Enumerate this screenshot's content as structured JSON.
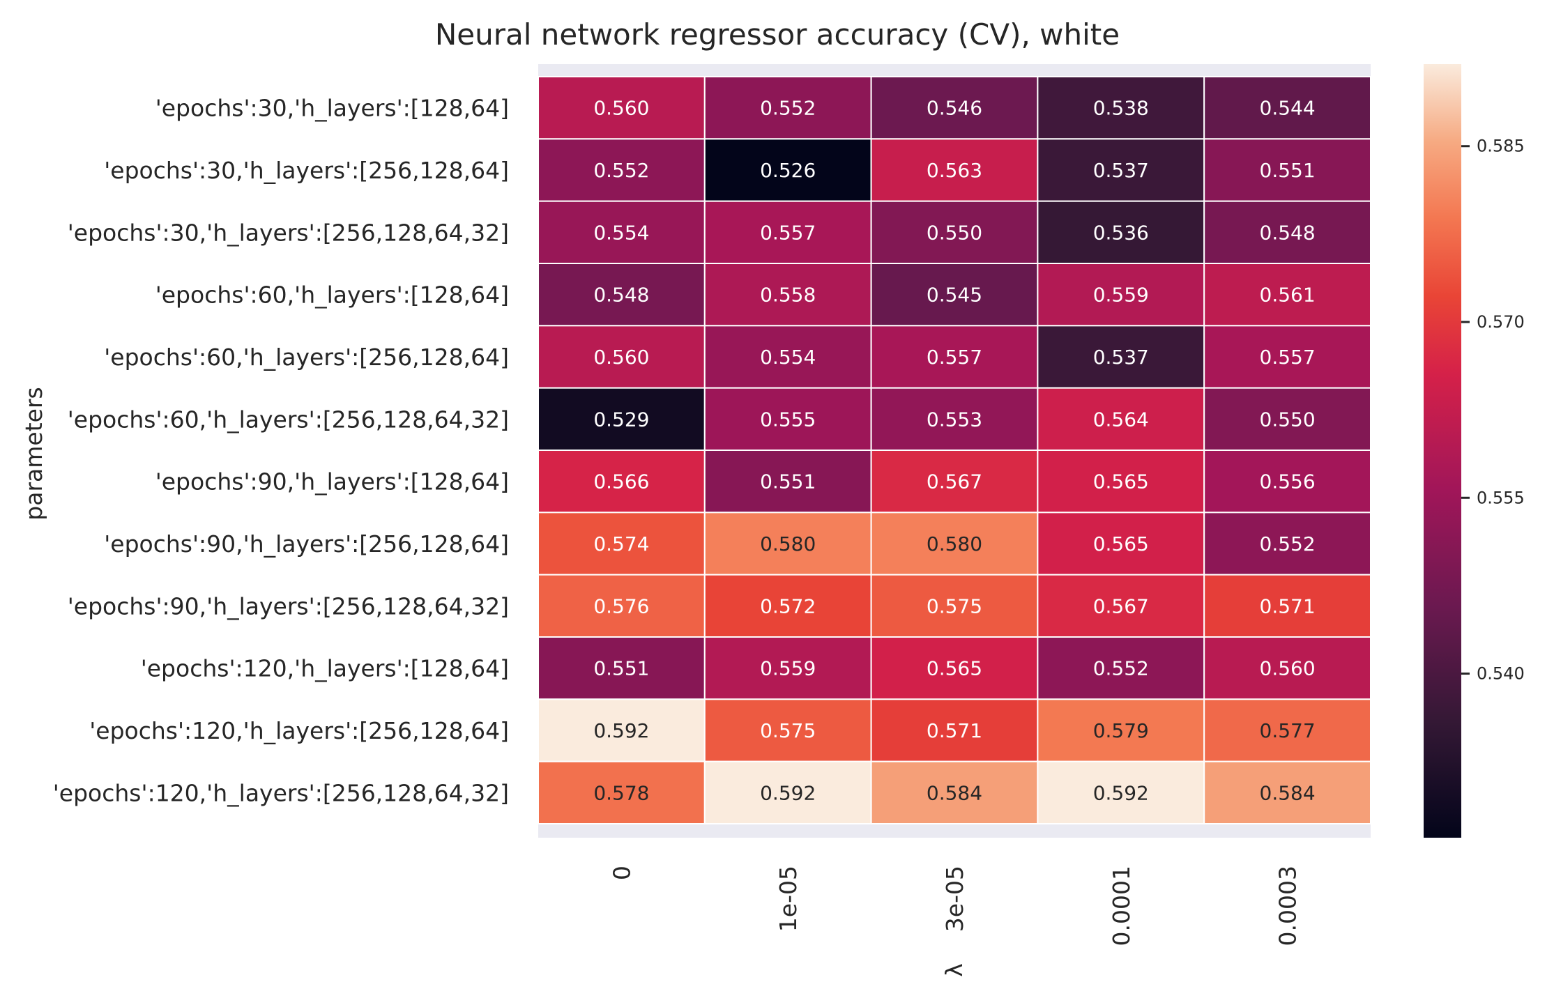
{
  "chart_data": {
    "type": "heatmap",
    "title": "Neural network regressor accuracy (CV), white",
    "xlabel": "λ",
    "ylabel": "parameters",
    "x_categories": [
      "0",
      "1e-05",
      "3e-05",
      "0.0001",
      "0.0003"
    ],
    "y_categories": [
      "'epochs':30,'h_layers':[128,64]",
      "'epochs':30,'h_layers':[256,128,64]",
      "'epochs':30,'h_layers':[256,128,64,32]",
      "'epochs':60,'h_layers':[128,64]",
      "'epochs':60,'h_layers':[256,128,64]",
      "'epochs':60,'h_layers':[256,128,64,32]",
      "'epochs':90,'h_layers':[128,64]",
      "'epochs':90,'h_layers':[256,128,64]",
      "'epochs':90,'h_layers':[256,128,64,32]",
      "'epochs':120,'h_layers':[128,64]",
      "'epochs':120,'h_layers':[256,128,64]",
      "'epochs':120,'h_layers':[256,128,64,32]"
    ],
    "values": [
      [
        0.56,
        0.552,
        0.546,
        0.538,
        0.544
      ],
      [
        0.552,
        0.526,
        0.563,
        0.537,
        0.551
      ],
      [
        0.554,
        0.557,
        0.55,
        0.536,
        0.548
      ],
      [
        0.548,
        0.558,
        0.545,
        0.559,
        0.561
      ],
      [
        0.56,
        0.554,
        0.557,
        0.537,
        0.557
      ],
      [
        0.529,
        0.555,
        0.553,
        0.564,
        0.55
      ],
      [
        0.566,
        0.551,
        0.567,
        0.565,
        0.556
      ],
      [
        0.574,
        0.58,
        0.58,
        0.565,
        0.552
      ],
      [
        0.576,
        0.572,
        0.575,
        0.567,
        0.571
      ],
      [
        0.551,
        0.559,
        0.565,
        0.552,
        0.56
      ],
      [
        0.592,
        0.575,
        0.571,
        0.579,
        0.577
      ],
      [
        0.578,
        0.592,
        0.584,
        0.592,
        0.584
      ]
    ],
    "value_format": 3,
    "colormap": "rocket",
    "colorbar": {
      "vmin": 0.526,
      "vmax": 0.592,
      "ticks": [
        0.54,
        0.555,
        0.57,
        0.585
      ],
      "tick_labels": [
        "0.540",
        "0.555",
        "0.570",
        "0.585"
      ]
    },
    "axes_background": "#eaeaf2",
    "cell_separator_color": "#ffffff"
  }
}
